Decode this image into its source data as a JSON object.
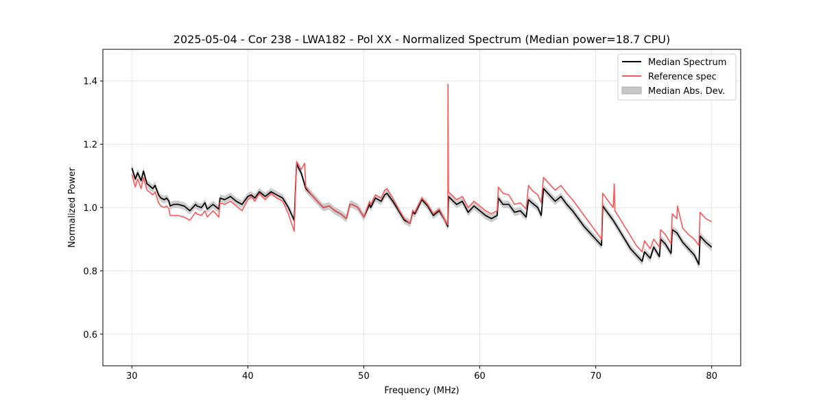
{
  "chart_data": {
    "type": "line",
    "title": "2025-05-04 - Cor 238 - LWA182 - Pol XX - Normalized Spectrum (Median power=18.7 CPU)",
    "xlabel": "Frequency (MHz)",
    "ylabel": "Normalized Power",
    "xlim": [
      27.5,
      82.5
    ],
    "ylim": [
      0.5,
      1.5
    ],
    "xticks": [
      30,
      40,
      50,
      60,
      70,
      80
    ],
    "yticks": [
      0.6,
      0.8,
      1.0,
      1.2,
      1.4
    ],
    "grid": true,
    "legend_position": "top-right",
    "legend": [
      "Median Spectrum",
      "Reference spec",
      "Median Abs. Dev."
    ],
    "colors": {
      "median": "#000000",
      "reference": "#ff5555",
      "mad": "#c8c8c8"
    },
    "mad_halfwidth": 0.012,
    "series": [
      {
        "name": "Median Spectrum",
        "x": [
          30.0,
          30.3,
          30.5,
          30.8,
          31.0,
          31.3,
          31.5,
          31.8,
          32.0,
          32.3,
          32.5,
          32.8,
          33.0,
          33.2,
          33.3,
          33.6,
          34.0,
          34.5,
          35.0,
          35.5,
          35.6,
          36.0,
          36.3,
          36.5,
          37.0,
          37.5,
          37.6,
          38.0,
          38.5,
          39.0,
          39.5,
          40.0,
          40.3,
          40.6,
          41.0,
          41.5,
          42.0,
          42.5,
          43.0,
          43.5,
          44.0,
          44.2,
          44.3,
          44.6,
          45.0,
          45.5,
          46.0,
          46.5,
          47.0,
          47.5,
          48.0,
          48.5,
          48.8,
          49.0,
          49.5,
          50.0,
          50.5,
          50.6,
          51.0,
          51.5,
          51.8,
          52.0,
          52.5,
          53.0,
          53.5,
          54.0,
          54.2,
          54.4,
          55.0,
          55.5,
          56.0,
          56.5,
          57.0,
          57.25,
          57.3,
          58.0,
          58.5,
          59.0,
          59.5,
          60.0,
          60.5,
          61.0,
          61.5,
          61.6,
          62.0,
          62.5,
          63.0,
          63.5,
          64.0,
          64.2,
          64.5,
          65.0,
          65.3,
          65.5,
          66.0,
          66.5,
          67.0,
          67.5,
          68.0,
          68.5,
          69.0,
          69.5,
          70.0,
          70.5,
          70.6,
          71.0,
          71.5,
          72.0,
          72.5,
          73.0,
          73.5,
          74.0,
          74.2,
          74.7,
          75.0,
          75.5,
          75.6,
          76.0,
          76.5,
          76.6,
          77.0,
          77.5,
          78.0,
          78.5,
          78.9,
          79.0,
          79.5,
          80.0
        ],
        "y": [
          1.125,
          1.09,
          1.11,
          1.085,
          1.115,
          1.075,
          1.07,
          1.06,
          1.07,
          1.04,
          1.03,
          1.025,
          1.03,
          1.02,
          1.005,
          1.01,
          1.01,
          1.005,
          0.99,
          1.01,
          1.005,
          1.0,
          1.015,
          0.995,
          1.01,
          0.995,
          1.03,
          1.025,
          1.035,
          1.02,
          1.01,
          1.035,
          1.04,
          1.03,
          1.05,
          1.035,
          1.05,
          1.04,
          1.03,
          1.0,
          0.96,
          1.14,
          1.13,
          1.11,
          1.06,
          1.04,
          1.02,
          1.0,
          1.005,
          0.99,
          0.98,
          0.965,
          1.01,
          1.01,
          1.0,
          0.97,
          1.01,
          1.0,
          1.03,
          1.02,
          1.04,
          1.045,
          1.02,
          0.99,
          0.96,
          0.95,
          0.985,
          0.98,
          1.025,
          1.005,
          0.975,
          0.99,
          0.96,
          0.94,
          1.035,
          1.01,
          1.02,
          0.985,
          1.005,
          0.99,
          0.975,
          0.965,
          0.975,
          1.03,
          1.01,
          1.01,
          0.985,
          0.99,
          0.97,
          1.025,
          1.015,
          1.0,
          0.975,
          1.06,
          1.04,
          1.02,
          1.035,
          1.01,
          0.99,
          0.965,
          0.94,
          0.92,
          0.9,
          0.88,
          1.005,
          0.985,
          0.96,
          0.93,
          0.9,
          0.87,
          0.85,
          0.83,
          0.86,
          0.84,
          0.875,
          0.845,
          0.9,
          0.885,
          0.855,
          0.93,
          0.92,
          0.89,
          0.87,
          0.85,
          0.82,
          0.91,
          0.89,
          0.875
        ]
      },
      {
        "name": "Reference spec",
        "x": [
          30.0,
          30.3,
          30.5,
          30.8,
          31.0,
          31.3,
          31.5,
          31.8,
          32.0,
          32.3,
          32.5,
          32.8,
          33.0,
          33.2,
          33.3,
          33.6,
          34.0,
          34.5,
          35.0,
          35.5,
          35.6,
          36.0,
          36.3,
          36.5,
          37.0,
          37.5,
          37.6,
          38.0,
          38.5,
          39.0,
          39.5,
          40.0,
          40.3,
          40.6,
          41.0,
          41.5,
          42.0,
          42.5,
          43.0,
          43.5,
          44.0,
          44.2,
          44.3,
          44.6,
          44.9,
          45.0,
          45.5,
          46.0,
          46.5,
          47.0,
          47.5,
          48.0,
          48.5,
          48.8,
          49.0,
          49.5,
          50.0,
          50.5,
          50.6,
          51.0,
          51.5,
          51.8,
          52.0,
          52.5,
          53.0,
          53.5,
          54.0,
          54.2,
          54.4,
          55.0,
          55.5,
          56.0,
          56.5,
          57.0,
          57.25,
          57.26,
          57.3,
          58.0,
          58.5,
          59.0,
          59.5,
          60.0,
          60.5,
          61.0,
          61.5,
          61.6,
          62.0,
          62.5,
          63.0,
          63.5,
          64.0,
          64.2,
          64.5,
          65.0,
          65.3,
          65.5,
          66.0,
          66.5,
          67.0,
          67.5,
          68.0,
          68.5,
          69.0,
          69.5,
          70.0,
          70.5,
          70.6,
          71.0,
          71.5,
          71.6,
          71.65,
          72.0,
          72.5,
          73.0,
          73.5,
          74.0,
          74.2,
          74.7,
          75.0,
          75.5,
          75.6,
          76.0,
          76.5,
          76.6,
          77.0,
          77.05,
          77.5,
          78.0,
          78.5,
          78.9,
          79.0,
          79.5,
          80.0
        ],
        "y": [
          1.105,
          1.065,
          1.09,
          1.06,
          1.095,
          1.055,
          1.05,
          1.04,
          1.05,
          1.015,
          1.005,
          1.0,
          1.005,
          0.995,
          0.975,
          0.975,
          0.975,
          0.97,
          0.96,
          0.985,
          0.98,
          0.975,
          0.99,
          0.97,
          0.99,
          0.97,
          1.015,
          1.01,
          1.02,
          1.005,
          0.99,
          1.025,
          1.035,
          1.02,
          1.045,
          1.025,
          1.045,
          1.03,
          1.02,
          0.98,
          0.925,
          1.145,
          1.14,
          1.12,
          1.14,
          1.065,
          1.04,
          1.02,
          1.0,
          1.005,
          0.99,
          0.98,
          0.965,
          1.01,
          1.01,
          1.0,
          0.97,
          1.02,
          1.01,
          1.04,
          1.03,
          1.055,
          1.06,
          1.03,
          0.995,
          0.965,
          0.95,
          0.99,
          0.985,
          1.03,
          1.01,
          0.98,
          0.995,
          0.96,
          0.945,
          1.39,
          1.05,
          1.025,
          1.035,
          1.0,
          1.02,
          1.005,
          0.99,
          0.98,
          0.99,
          1.065,
          1.045,
          1.04,
          1.01,
          1.015,
          0.995,
          1.07,
          1.055,
          1.04,
          1.015,
          1.095,
          1.075,
          1.055,
          1.07,
          1.045,
          1.025,
          1.0,
          0.975,
          0.95,
          0.925,
          0.9,
          1.045,
          1.025,
          1.0,
          1.075,
          0.99,
          0.97,
          0.94,
          0.91,
          0.88,
          0.86,
          0.895,
          0.87,
          0.9,
          0.875,
          0.93,
          0.915,
          0.885,
          0.98,
          0.965,
          1.005,
          0.935,
          0.915,
          0.9,
          0.88,
          0.985,
          0.965,
          0.955
        ]
      }
    ]
  }
}
